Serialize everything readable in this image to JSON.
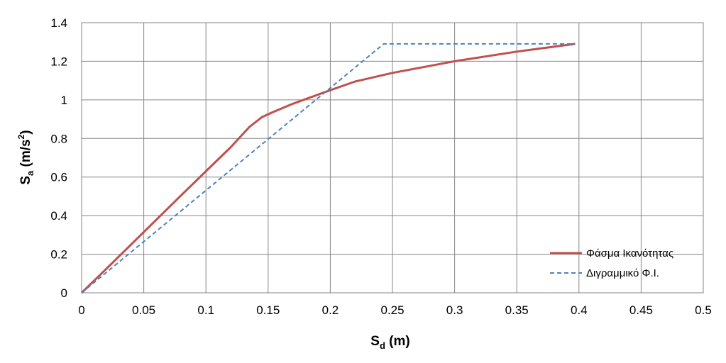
{
  "chart_data": {
    "type": "line",
    "xlabel": {
      "main": "S",
      "sub": "d",
      "rest": " (m)"
    },
    "ylabel": {
      "main": "S",
      "sub": "a",
      "rest": " (m/s",
      "sup": "2",
      "close": ")"
    },
    "xlim": [
      0,
      0.5
    ],
    "ylim": [
      0,
      1.4
    ],
    "x_ticks": [
      "0",
      "0.05",
      "0.1",
      "0.15",
      "0.2",
      "0.25",
      "0.3",
      "0.35",
      "0.4",
      "0.45",
      "0.5"
    ],
    "y_ticks": [
      "0",
      "0.2",
      "0.4",
      "0.6",
      "0.8",
      "1",
      "1.2",
      "1.4"
    ],
    "grid": true,
    "legend_position": "bottom-right",
    "series": [
      {
        "name": "Φάσμα Ικανότητας",
        "color": "#C0504D",
        "style": "solid",
        "points": [
          [
            0,
            0
          ],
          [
            0.02,
            0.125
          ],
          [
            0.05,
            0.315
          ],
          [
            0.08,
            0.505
          ],
          [
            0.1,
            0.63
          ],
          [
            0.12,
            0.755
          ],
          [
            0.135,
            0.86
          ],
          [
            0.145,
            0.91
          ],
          [
            0.155,
            0.94
          ],
          [
            0.17,
            0.98
          ],
          [
            0.2,
            1.05
          ],
          [
            0.22,
            1.095
          ],
          [
            0.25,
            1.14
          ],
          [
            0.3,
            1.2
          ],
          [
            0.35,
            1.25
          ],
          [
            0.397,
            1.29
          ]
        ]
      },
      {
        "name": "Διγραμμικό Φ.Ι.",
        "color": "#4F81BD",
        "style": "dashed",
        "points": [
          [
            0,
            0
          ],
          [
            0.243,
            1.29
          ],
          [
            0.397,
            1.29
          ]
        ]
      }
    ]
  }
}
